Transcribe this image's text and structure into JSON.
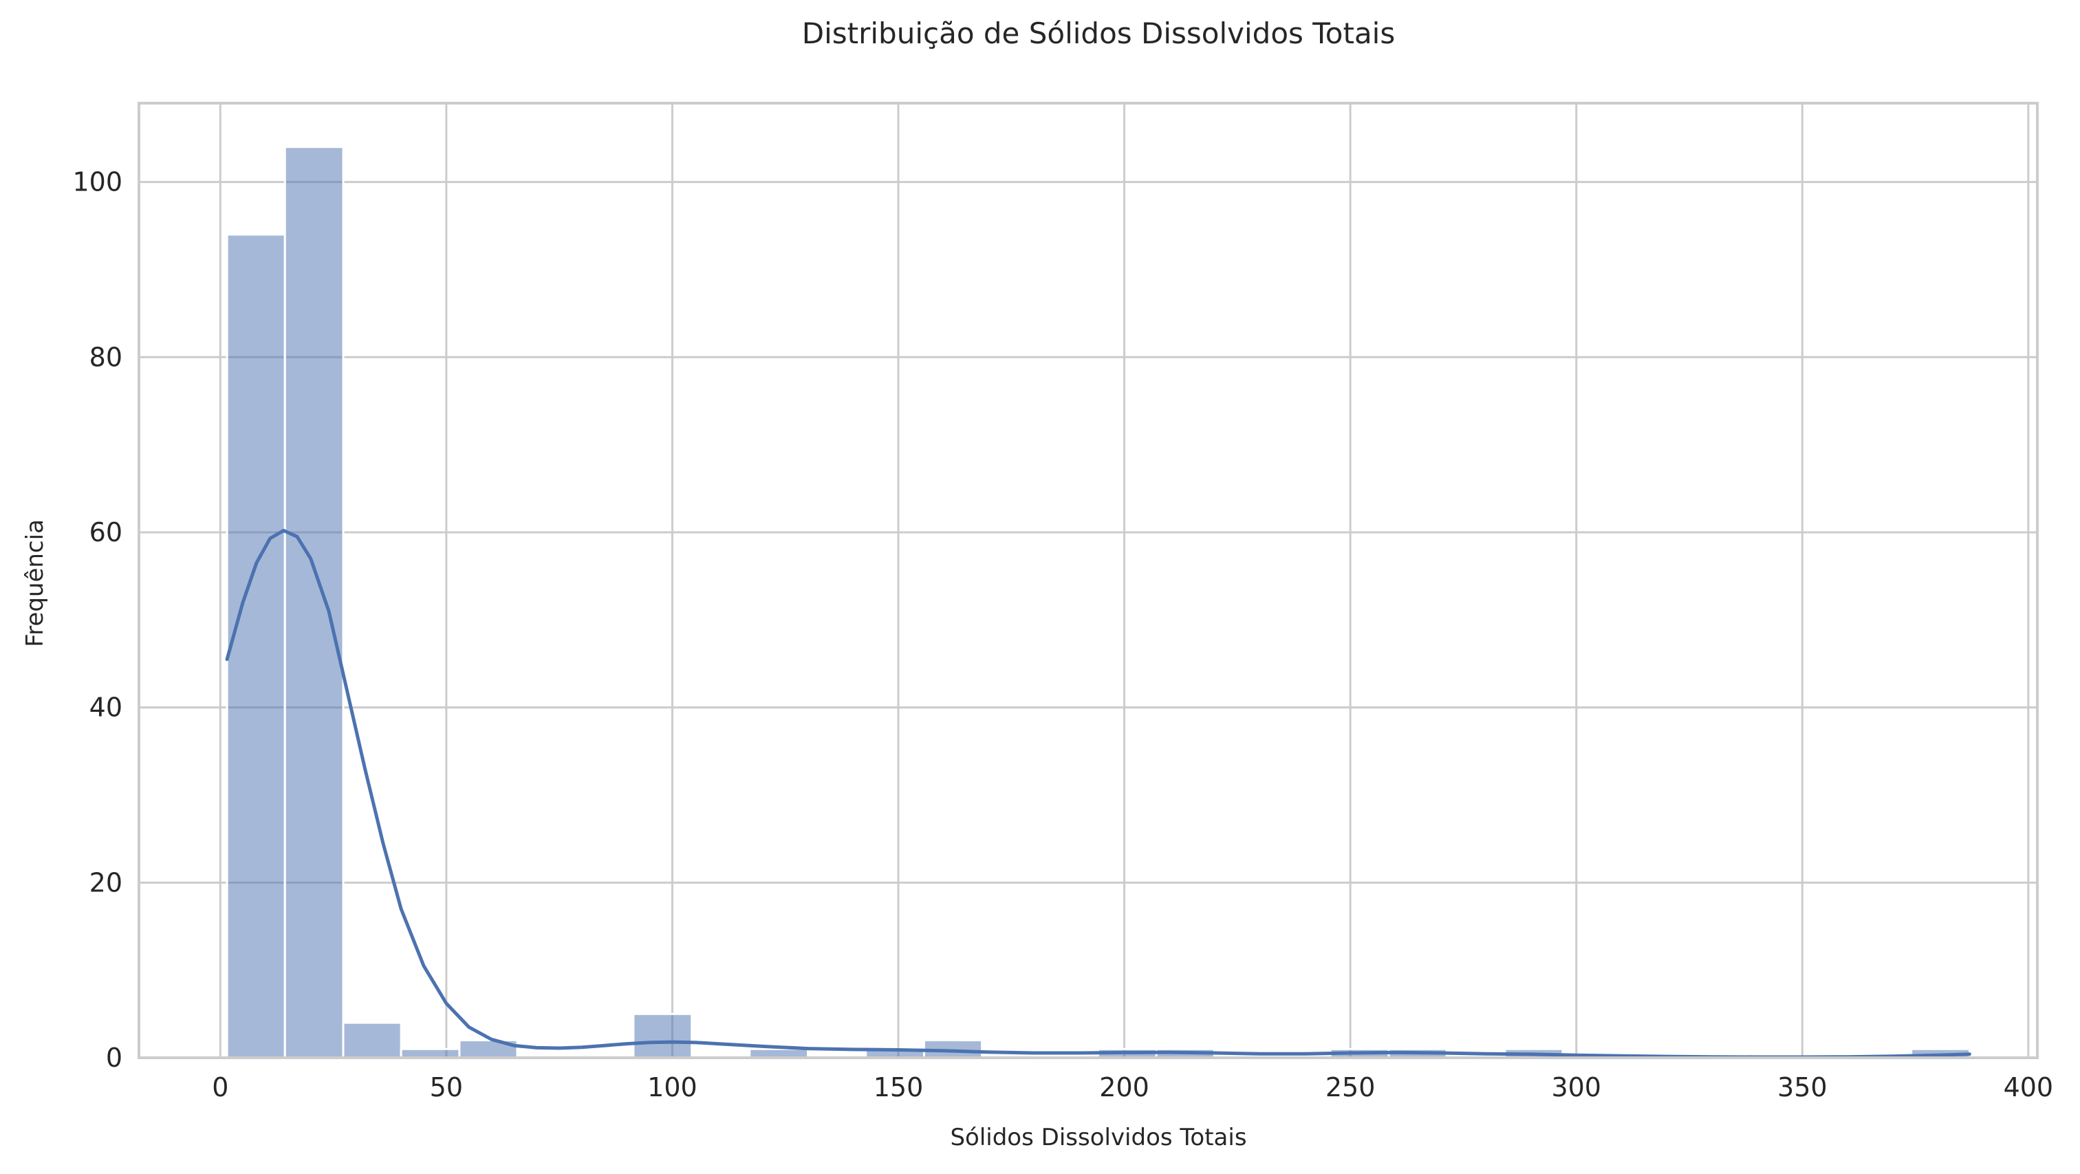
{
  "chart_data": {
    "type": "bar",
    "title": "Distribuição de Sólidos Dissolvidos Totais",
    "xlabel": "Sólidos Dissolvidos Totais",
    "ylabel": "Frequência",
    "xlim": [
      -18,
      402
    ],
    "ylim": [
      0,
      109
    ],
    "x_ticks": [
      0,
      50,
      100,
      150,
      200,
      250,
      300,
      350,
      400
    ],
    "y_ticks": [
      0,
      20,
      40,
      60,
      80,
      100
    ],
    "grid": true,
    "legend": "none",
    "bar_color": "#4c72b0",
    "bar_opacity": 0.5,
    "kde_color": "#4c72b0",
    "bins": [
      {
        "x0": 1.5,
        "x1": 14.3,
        "count": 94
      },
      {
        "x0": 14.3,
        "x1": 27.2,
        "count": 104
      },
      {
        "x0": 27.2,
        "x1": 40.0,
        "count": 4
      },
      {
        "x0": 40.0,
        "x1": 52.9,
        "count": 1
      },
      {
        "x0": 52.9,
        "x1": 65.7,
        "count": 2
      },
      {
        "x0": 65.7,
        "x1": 78.6,
        "count": 0
      },
      {
        "x0": 78.6,
        "x1": 91.4,
        "count": 0
      },
      {
        "x0": 91.4,
        "x1": 104.3,
        "count": 5
      },
      {
        "x0": 104.3,
        "x1": 117.1,
        "count": 0
      },
      {
        "x0": 117.1,
        "x1": 130.0,
        "count": 1
      },
      {
        "x0": 130.0,
        "x1": 142.8,
        "count": 0
      },
      {
        "x0": 142.8,
        "x1": 155.7,
        "count": 1
      },
      {
        "x0": 155.7,
        "x1": 168.5,
        "count": 2
      },
      {
        "x0": 168.5,
        "x1": 181.4,
        "count": 0
      },
      {
        "x0": 181.4,
        "x1": 194.2,
        "count": 0
      },
      {
        "x0": 194.2,
        "x1": 207.1,
        "count": 1
      },
      {
        "x0": 207.1,
        "x1": 219.9,
        "count": 1
      },
      {
        "x0": 219.9,
        "x1": 232.8,
        "count": 0
      },
      {
        "x0": 232.8,
        "x1": 245.6,
        "count": 0
      },
      {
        "x0": 245.6,
        "x1": 258.5,
        "count": 1
      },
      {
        "x0": 258.5,
        "x1": 271.3,
        "count": 1
      },
      {
        "x0": 271.3,
        "x1": 284.2,
        "count": 0
      },
      {
        "x0": 284.2,
        "x1": 297.0,
        "count": 1
      },
      {
        "x0": 297.0,
        "x1": 309.9,
        "count": 0
      },
      {
        "x0": 309.9,
        "x1": 322.7,
        "count": 0
      },
      {
        "x0": 322.7,
        "x1": 335.6,
        "count": 0
      },
      {
        "x0": 335.6,
        "x1": 348.4,
        "count": 0
      },
      {
        "x0": 348.4,
        "x1": 361.3,
        "count": 0
      },
      {
        "x0": 361.3,
        "x1": 374.1,
        "count": 0
      },
      {
        "x0": 374.1,
        "x1": 387.0,
        "count": 1
      }
    ],
    "kde": {
      "x": [
        1.5,
        5,
        8,
        11,
        14,
        17,
        20,
        24,
        28,
        32,
        36,
        40,
        45,
        50,
        55,
        60,
        65,
        70,
        75,
        80,
        85,
        90,
        95,
        100,
        105,
        110,
        120,
        130,
        140,
        150,
        160,
        170,
        180,
        190,
        200,
        210,
        220,
        230,
        240,
        250,
        260,
        270,
        280,
        290,
        300,
        310,
        320,
        330,
        340,
        350,
        360,
        370,
        380,
        387
      ],
      "y": [
        45.5,
        52,
        56.5,
        59.3,
        60.2,
        59.5,
        57,
        51,
        42,
        33,
        24.5,
        17,
        10.5,
        6.2,
        3.5,
        2.1,
        1.4,
        1.15,
        1.1,
        1.2,
        1.4,
        1.6,
        1.75,
        1.8,
        1.75,
        1.6,
        1.3,
        1.05,
        0.95,
        0.9,
        0.8,
        0.65,
        0.55,
        0.55,
        0.6,
        0.62,
        0.55,
        0.45,
        0.45,
        0.55,
        0.6,
        0.55,
        0.45,
        0.4,
        0.3,
        0.22,
        0.15,
        0.1,
        0.08,
        0.08,
        0.1,
        0.18,
        0.3,
        0.42
      ]
    }
  }
}
